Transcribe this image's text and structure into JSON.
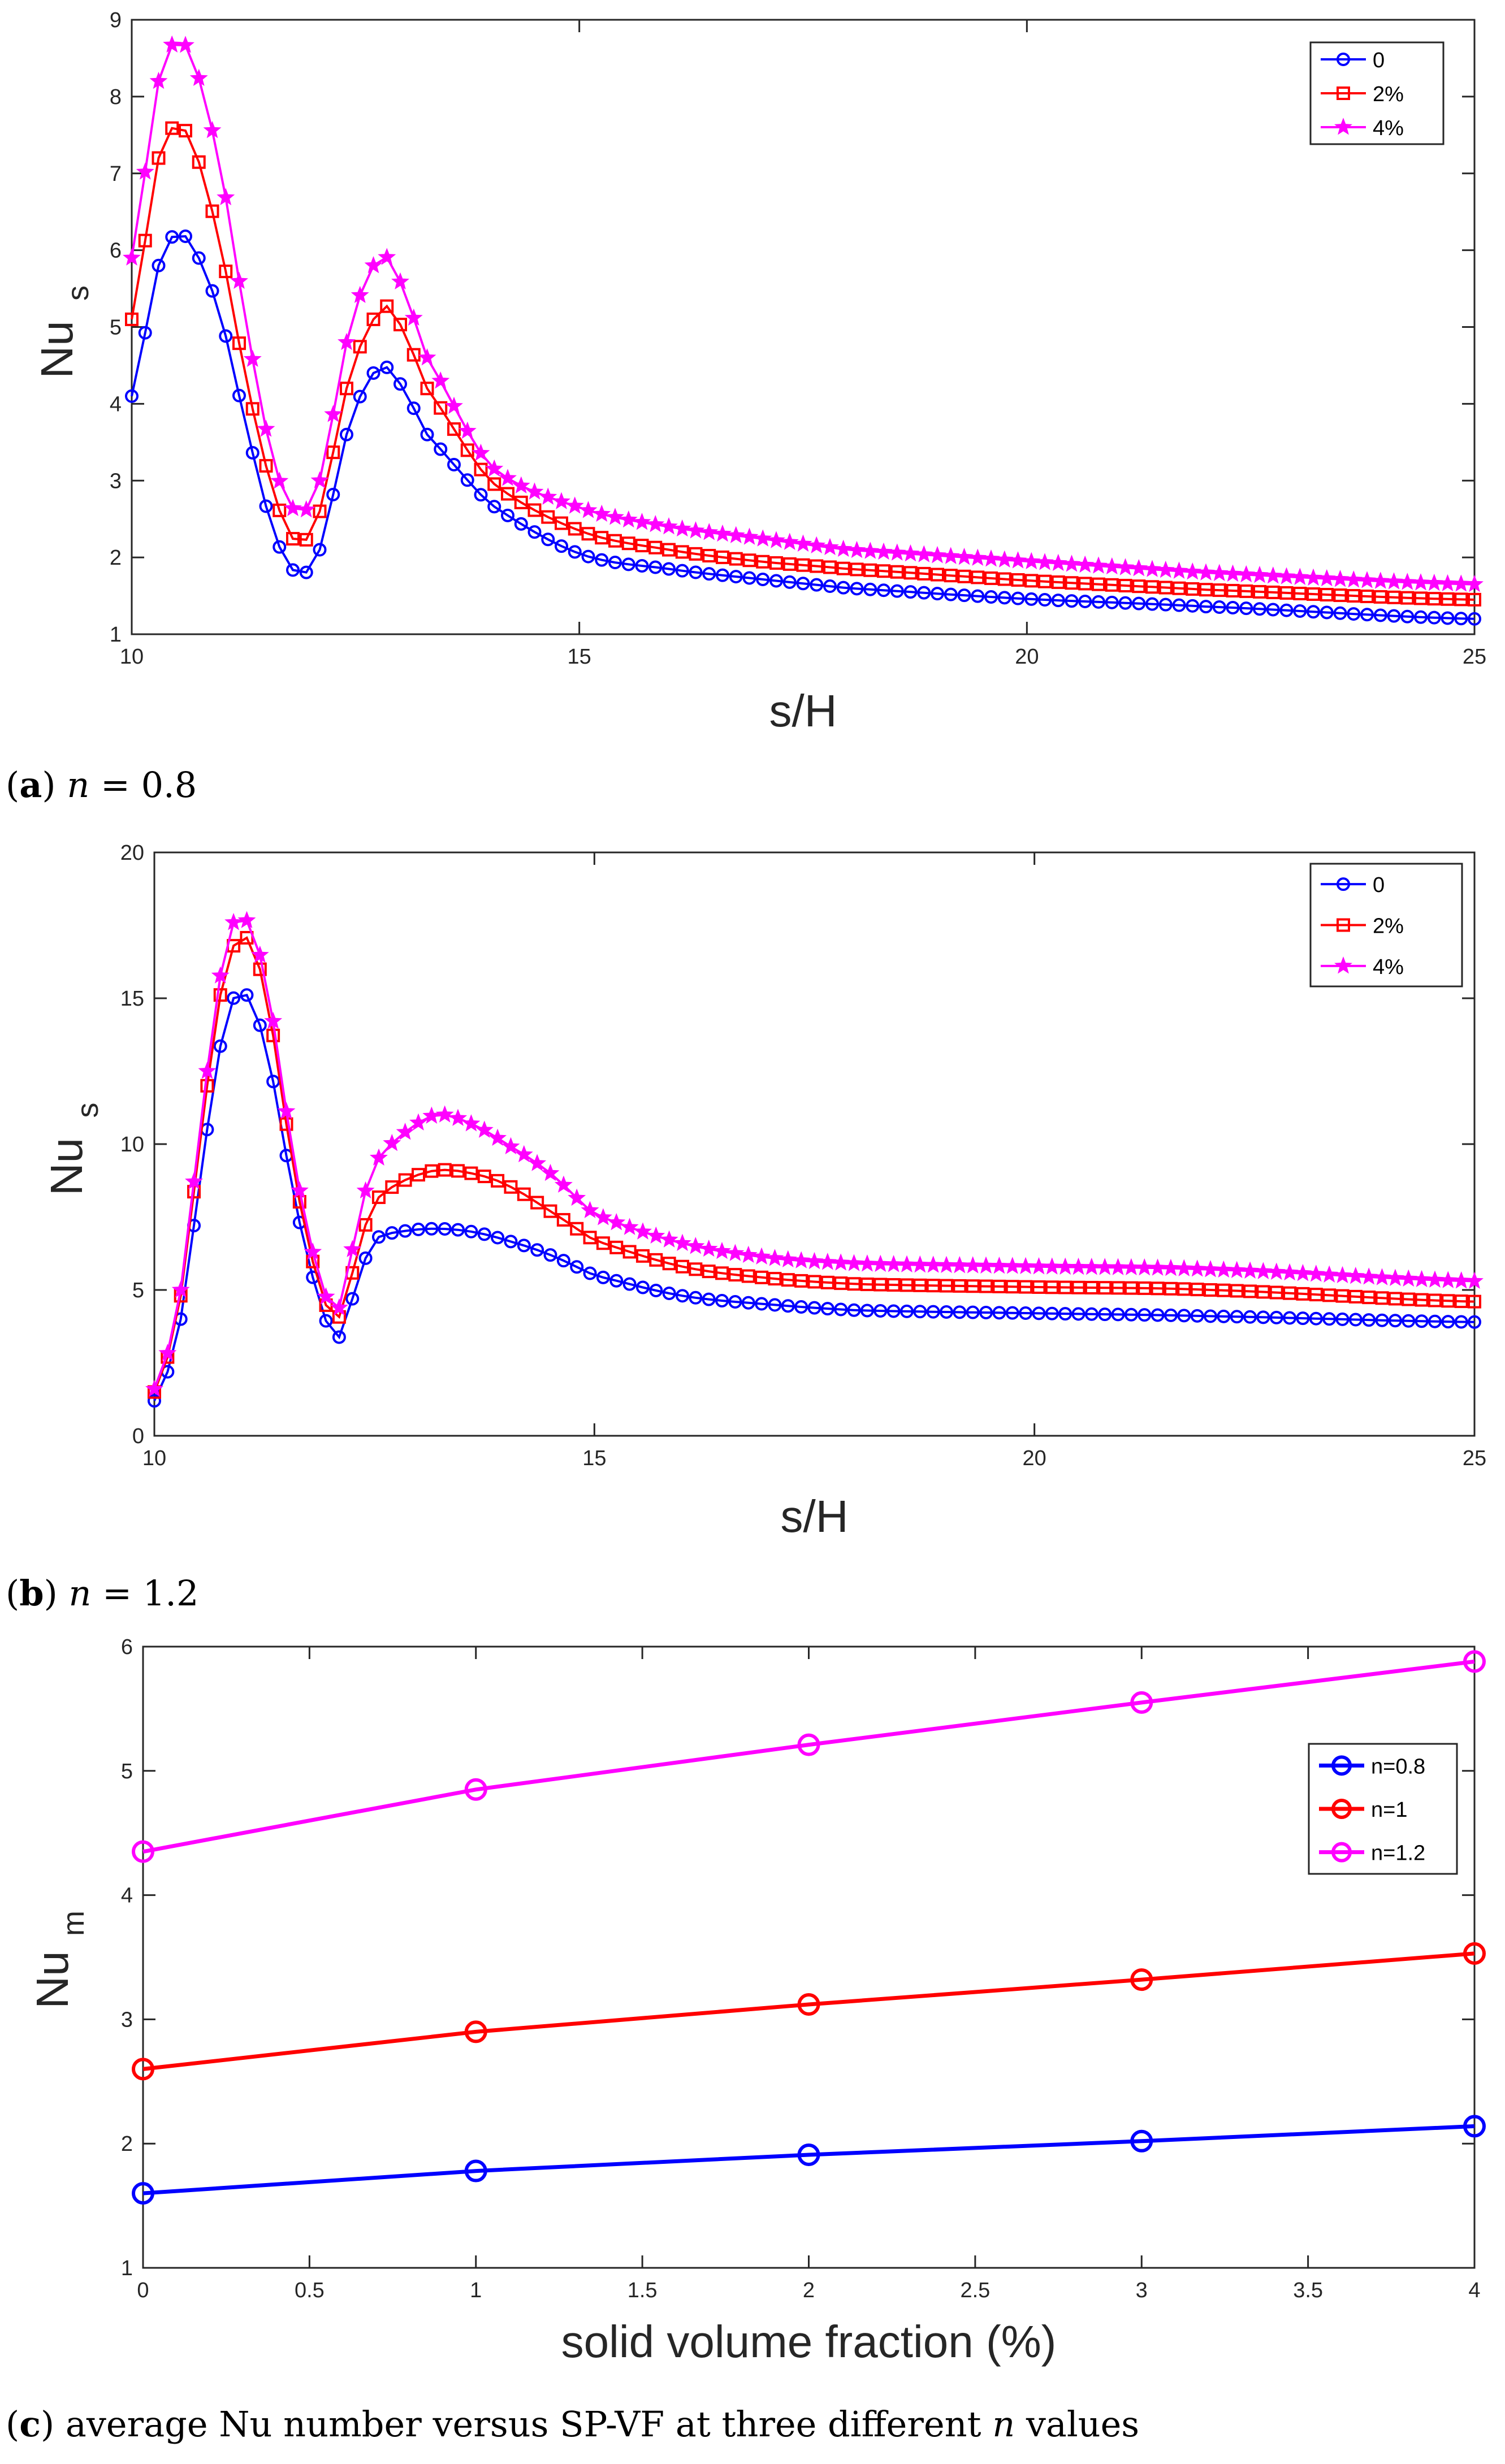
{
  "chart_data": [
    {
      "type": "line",
      "panel": "a",
      "caption_label": "a",
      "caption_var": "n",
      "caption_text": " = 0.8",
      "xlabel": "s/H",
      "ylabel": "Nu",
      "ylabel_sub": "s",
      "xlim": [
        10,
        25
      ],
      "ylim": [
        1,
        9
      ],
      "xticks": [
        "10",
        "15",
        "20",
        "25"
      ],
      "yticks": [
        "1",
        "2",
        "3",
        "4",
        "5",
        "6",
        "7",
        "8",
        "9"
      ],
      "legend_position": "top-right",
      "knots_x": [
        10,
        10.3,
        10.5,
        10.7,
        11,
        11.3,
        11.6,
        11.85,
        12.1,
        12.4,
        12.7,
        12.9,
        13.3,
        14,
        15,
        16,
        17,
        18,
        20,
        22,
        25
      ],
      "series": [
        {
          "name": "0",
          "color": "#0000ff",
          "marker": "circle",
          "knots_y": [
            4.1,
            5.8,
            6.2,
            6.0,
            5.1,
            3.6,
            2.3,
            1.8,
            2.1,
            3.6,
            4.4,
            4.4,
            3.6,
            2.7,
            2.05,
            1.85,
            1.72,
            1.6,
            1.46,
            1.36,
            1.2
          ]
        },
        {
          "name": "2%",
          "color": "#ff0000",
          "marker": "square",
          "knots_y": [
            5.1,
            7.2,
            7.6,
            7.3,
            6.0,
            4.2,
            2.8,
            2.2,
            2.6,
            4.2,
            5.1,
            5.2,
            4.2,
            3.0,
            2.35,
            2.1,
            1.95,
            1.85,
            1.7,
            1.58,
            1.45
          ]
        },
        {
          "name": "4%",
          "color": "#ff00ff",
          "marker": "star",
          "knots_y": [
            5.9,
            8.2,
            8.7,
            8.4,
            7.0,
            4.9,
            3.2,
            2.6,
            3.0,
            4.8,
            5.8,
            5.8,
            4.6,
            3.2,
            2.65,
            2.4,
            2.25,
            2.1,
            1.95,
            1.8,
            1.65
          ]
        }
      ]
    },
    {
      "type": "line",
      "panel": "b",
      "caption_label": "b",
      "caption_var": "n",
      "caption_text": " = 1.2",
      "xlabel": "s/H",
      "ylabel": "Nu",
      "ylabel_sub": "s",
      "xlim": [
        10,
        25
      ],
      "ylim": [
        0,
        20
      ],
      "xticks": [
        "10",
        "15",
        "20",
        "25"
      ],
      "yticks": [
        "0",
        "5",
        "10",
        "15",
        "20"
      ],
      "legend_position": "top-right",
      "knots_x": [
        10,
        10.3,
        10.6,
        10.8,
        10.95,
        11.1,
        11.3,
        11.6,
        11.9,
        12.05,
        12.15,
        12.3,
        12.5,
        12.8,
        13.2,
        13.6,
        14,
        14.5,
        15,
        16,
        17,
        18,
        20,
        22,
        25
      ],
      "series": [
        {
          "name": "0",
          "color": "#0000ff",
          "marker": "circle",
          "knots_y": [
            1.2,
            4.0,
            10.5,
            14.0,
            15.2,
            14.8,
            12.8,
            8.0,
            4.5,
            3.5,
            3.6,
            5.3,
            6.7,
            7.0,
            7.1,
            7.0,
            6.7,
            6.2,
            5.5,
            4.8,
            4.5,
            4.3,
            4.2,
            4.1,
            3.9
          ]
        },
        {
          "name": "2%",
          "color": "#ff0000",
          "marker": "square",
          "knots_y": [
            1.5,
            4.8,
            12.0,
            15.8,
            17.0,
            16.8,
            14.5,
            8.8,
            5.0,
            4.2,
            4.3,
            6.3,
            8.0,
            8.7,
            9.1,
            9.0,
            8.6,
            7.7,
            6.7,
            5.8,
            5.4,
            5.2,
            5.1,
            5.0,
            4.6
          ]
        },
        {
          "name": "4%",
          "color": "#ff00ff",
          "marker": "star",
          "knots_y": [
            1.6,
            5.0,
            12.5,
            16.5,
            17.8,
            17.3,
            15.0,
            9.2,
            5.3,
            4.5,
            4.7,
            7.3,
            9.3,
            10.3,
            11.0,
            10.7,
            10.0,
            9.0,
            7.6,
            6.6,
            6.1,
            5.9,
            5.8,
            5.7,
            5.3
          ]
        }
      ]
    },
    {
      "type": "line",
      "panel": "c",
      "caption_label": "c",
      "caption_pre": " average Nu number versus SP-VF at three different ",
      "caption_var": "n",
      "caption_post": " values",
      "xlabel": "solid volume fraction (%)",
      "ylabel": "Nu",
      "ylabel_sub": "m",
      "xlim": [
        0,
        4
      ],
      "ylim": [
        1,
        6
      ],
      "xticks": [
        "0",
        "0.5",
        "1",
        "1.5",
        "2",
        "2.5",
        "3",
        "3.5",
        "4"
      ],
      "yticks": [
        "1",
        "2",
        "3",
        "4",
        "5",
        "6"
      ],
      "legend_position": "right",
      "x": [
        0,
        1,
        2,
        3,
        4
      ],
      "series": [
        {
          "name": "n=0.8",
          "color": "#0000ff",
          "marker": "circle",
          "values": [
            1.6,
            1.78,
            1.91,
            2.02,
            2.14
          ]
        },
        {
          "name": "n=1",
          "color": "#ff0000",
          "marker": "circle",
          "values": [
            2.6,
            2.9,
            3.12,
            3.32,
            3.53
          ]
        },
        {
          "name": "n=1.2",
          "color": "#ff00ff",
          "marker": "circle",
          "values": [
            4.35,
            4.85,
            5.21,
            5.55,
            5.88
          ]
        }
      ]
    }
  ]
}
